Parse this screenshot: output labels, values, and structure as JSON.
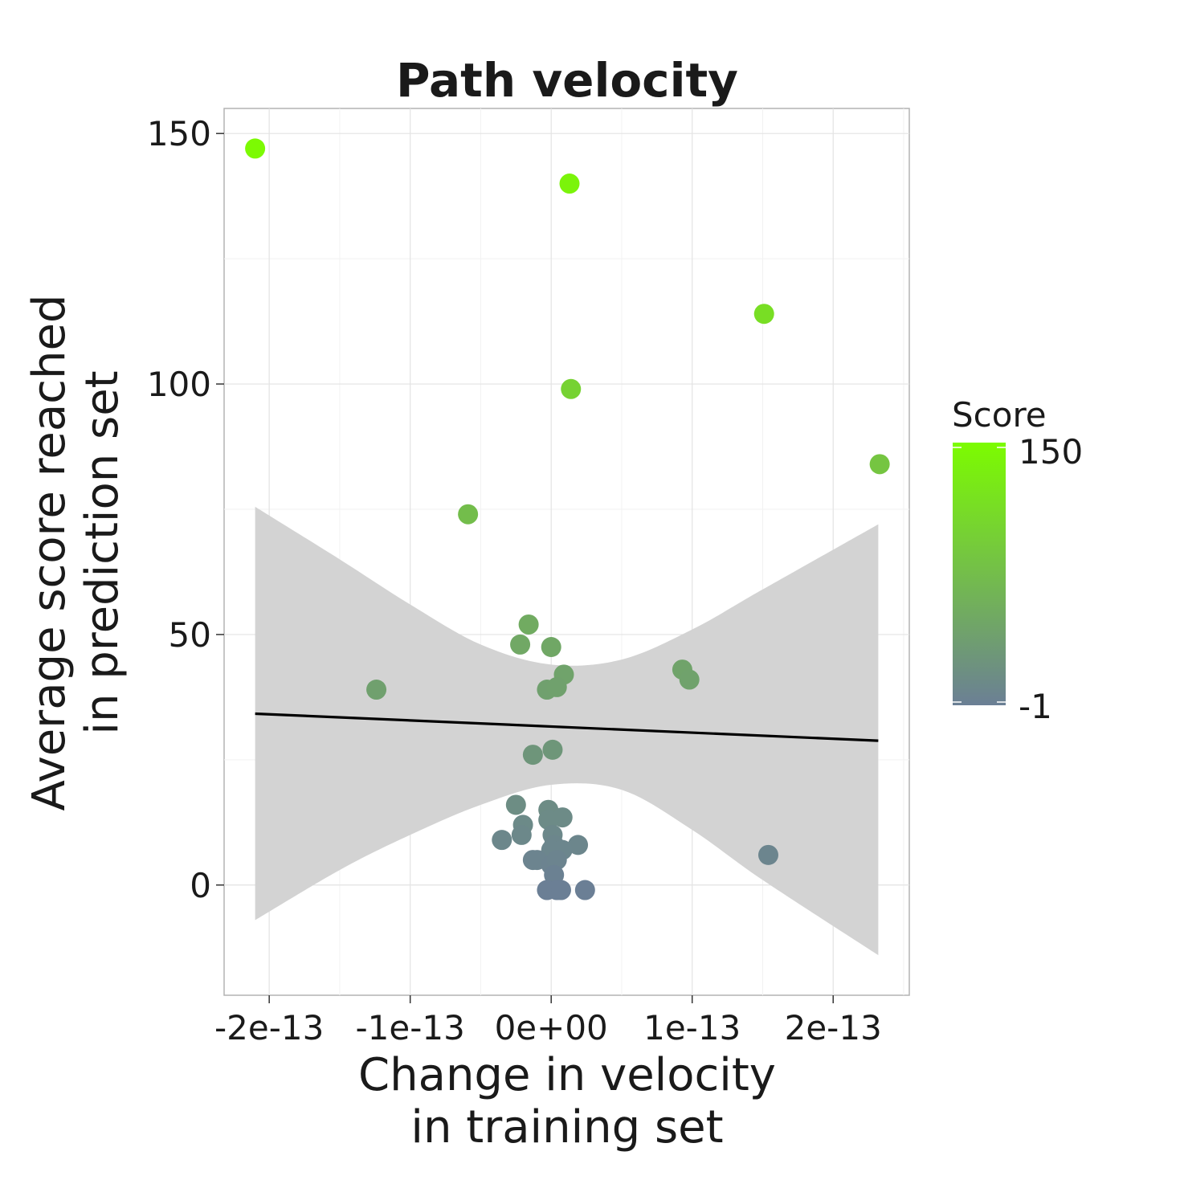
{
  "chart_data": {
    "type": "scatter",
    "title": "Path velocity",
    "xlabel": [
      "Change in velocity",
      "in training set"
    ],
    "ylabel": [
      "Average score reached",
      "in prediction set"
    ],
    "xlim": [
      -2.32e-13,
      2.54e-13
    ],
    "ylim": [
      -22,
      155
    ],
    "x_ticks": [
      -2e-13,
      -1e-13,
      0,
      1e-13,
      2e-13
    ],
    "x_tick_labels": [
      "-2e-13",
      "-1e-13",
      "0e+00",
      "1e-13",
      "2e-13"
    ],
    "y_ticks": [
      0,
      50,
      100,
      150
    ],
    "y_tick_labels": [
      "0",
      "50",
      "100",
      "150"
    ],
    "grid": true,
    "legend": {
      "title": "Score",
      "type": "colorbar",
      "position": "right",
      "min_label": "-1",
      "max_label": "150",
      "low_color": "#6b7f95",
      "high_color": "#7cfc00"
    },
    "point_color_scale": {
      "min": -1,
      "max": 150
    },
    "fit_line": {
      "x": [
        -2.1e-13,
        2.32e-13
      ],
      "y": [
        34.2,
        28.8
      ],
      "color": "#000000"
    },
    "confidence_band": {
      "color": "#d3d3d3",
      "x": [
        -2.1e-13,
        -1.5e-13,
        -1e-13,
        -5e-14,
        0,
        5e-14,
        1e-13,
        1.5e-13,
        2.32e-13
      ],
      "upper": [
        75.5,
        65,
        56,
        48,
        44,
        45,
        51,
        59,
        72
      ],
      "lower": [
        -7,
        3,
        10,
        16,
        20,
        19,
        11,
        1,
        -14
      ]
    },
    "points": [
      {
        "x": -2.1e-13,
        "y": 147
      },
      {
        "x": 1.3e-14,
        "y": 140
      },
      {
        "x": 1.51e-13,
        "y": 114
      },
      {
        "x": 1.4e-14,
        "y": 99
      },
      {
        "x": 2.33e-13,
        "y": 84
      },
      {
        "x": -5.9e-14,
        "y": 74
      },
      {
        "x": -1.6e-14,
        "y": 52
      },
      {
        "x": -2.2e-14,
        "y": 48
      },
      {
        "x": 0,
        "y": 47.5
      },
      {
        "x": 9e-15,
        "y": 42
      },
      {
        "x": 9.3e-14,
        "y": 43
      },
      {
        "x": 9.8e-14,
        "y": 41
      },
      {
        "x": -1.24e-13,
        "y": 39
      },
      {
        "x": -3e-15,
        "y": 39
      },
      {
        "x": 4e-15,
        "y": 39.5
      },
      {
        "x": 1e-15,
        "y": 27
      },
      {
        "x": -1.3e-14,
        "y": 26
      },
      {
        "x": -2.5e-14,
        "y": 16
      },
      {
        "x": -2e-15,
        "y": 15
      },
      {
        "x": 8e-15,
        "y": 13.5
      },
      {
        "x": -2e-15,
        "y": 13
      },
      {
        "x": -2e-14,
        "y": 12
      },
      {
        "x": -2.1e-14,
        "y": 10
      },
      {
        "x": 1e-15,
        "y": 10
      },
      {
        "x": -3.5e-14,
        "y": 9
      },
      {
        "x": 2e-15,
        "y": 8
      },
      {
        "x": 1.9e-14,
        "y": 8
      },
      {
        "x": 0,
        "y": 7
      },
      {
        "x": 8e-15,
        "y": 7
      },
      {
        "x": -1.3e-14,
        "y": 5
      },
      {
        "x": -1e-14,
        "y": 5
      },
      {
        "x": 0,
        "y": 4
      },
      {
        "x": 4e-15,
        "y": 5
      },
      {
        "x": 1.54e-13,
        "y": 6
      },
      {
        "x": 2e-15,
        "y": 2
      },
      {
        "x": -3e-15,
        "y": -1
      },
      {
        "x": 4e-15,
        "y": -1
      },
      {
        "x": 7e-15,
        "y": -1
      },
      {
        "x": 2.4e-14,
        "y": -1
      }
    ]
  }
}
